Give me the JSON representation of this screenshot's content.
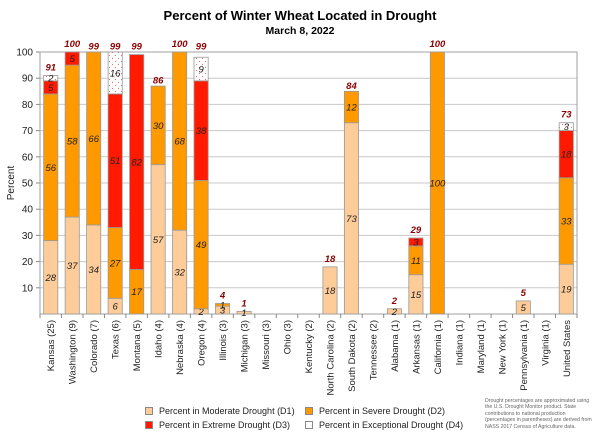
{
  "chart_data": {
    "type": "bar",
    "stacked": true,
    "title": "Percent of Winter Wheat Located in Drought",
    "subtitle": "March 8, 2022",
    "xlabel": "",
    "ylabel": "Percent",
    "ylim": [
      0,
      100
    ],
    "yticks": [
      10,
      20,
      30,
      40,
      50,
      60,
      70,
      80,
      90,
      100
    ],
    "grid": true,
    "legend_position": "bottom",
    "categories": [
      "Kansas (25)",
      "Washington (9)",
      "Colorado (7)",
      "Texas (6)",
      "Montana (5)",
      "Idaho (4)",
      "Nebraska (4)",
      "Oregon (4)",
      "Illinois (3)",
      "Michigan (3)",
      "Missouri (3)",
      "Ohio (3)",
      "Kentucky (2)",
      "North Carolina (2)",
      "South Dakota (2)",
      "Tennessee (2)",
      "Alabama (1)",
      "Arkansas (1)",
      "California (1)",
      "Indiana (1)",
      "Maryland (1)",
      "New York (1)",
      "Pennsylvania (1)",
      "Virginia (1)",
      "United States"
    ],
    "series": [
      {
        "name": "Percent in Moderate Drought (D1)",
        "color": "#FDCC99",
        "values": [
          28,
          37,
          34,
          6,
          0,
          57,
          32,
          2,
          3,
          1,
          0,
          0,
          0,
          18,
          73,
          0,
          2,
          15,
          0,
          0,
          0,
          0,
          5,
          0,
          19
        ]
      },
      {
        "name": "Percent in Severe Drought (D2)",
        "color": "#FF9900",
        "values": [
          56,
          58,
          66,
          27,
          17,
          30,
          68,
          49,
          1,
          0,
          0,
          0,
          0,
          0,
          12,
          0,
          0,
          11,
          100,
          0,
          0,
          0,
          0,
          0,
          33
        ]
      },
      {
        "name": "Percent in Extreme Drought (D3)",
        "color": "#FF1A00",
        "values": [
          5,
          5,
          0,
          51,
          82,
          0,
          0,
          38,
          0,
          0,
          0,
          0,
          0,
          0,
          0,
          0,
          0,
          3,
          0,
          0,
          0,
          0,
          0,
          0,
          18
        ]
      },
      {
        "name": "Percent in Exceptional Drought (D4)",
        "color": "#FFFFFF",
        "values": [
          2,
          0,
          0,
          16,
          0,
          0,
          0,
          9,
          0,
          0,
          0,
          0,
          0,
          0,
          0,
          0,
          0,
          0,
          0,
          0,
          0,
          0,
          0,
          0,
          3
        ]
      }
    ],
    "totals": [
      91,
      100,
      99,
      99,
      99,
      86,
      100,
      99,
      4,
      1,
      null,
      null,
      null,
      18,
      84,
      null,
      2,
      29,
      100,
      null,
      null,
      null,
      5,
      null,
      73
    ],
    "total_label_color": "#8B0000"
  },
  "footnote": "Drought percentages are approximated using the U.S. Drought Monitor product. State contributions to national production (percentages in parentheses) are derived from NASS 2017 Census of Agriculture data."
}
